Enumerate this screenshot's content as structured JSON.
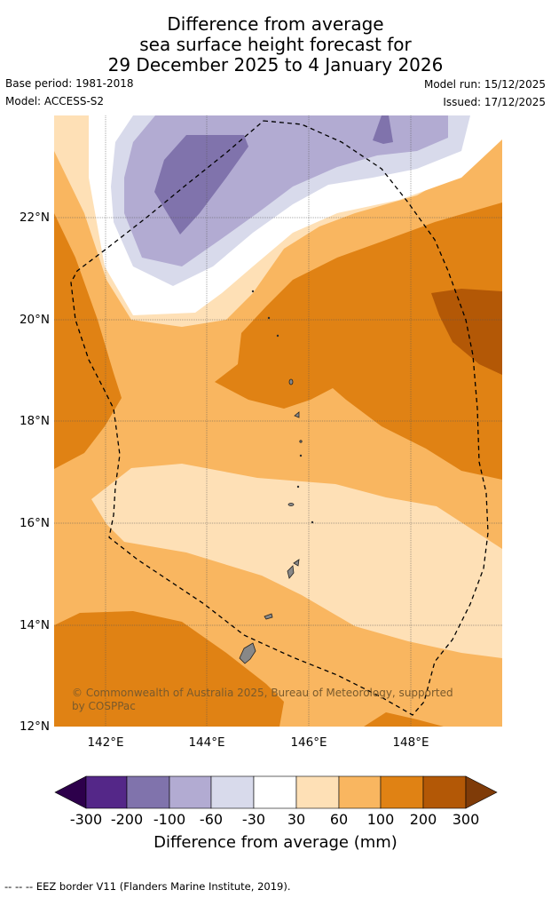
{
  "title": {
    "line1": "Difference from average",
    "line2": "sea surface height forecast for",
    "line3": "29 December 2025 to 4 January 2026"
  },
  "meta": {
    "base_period": "Base period: 1981-2018",
    "model": "Model: ACCESS-S2",
    "model_run": "Model run: 15/12/2025",
    "issued": "Issued: 17/12/2025"
  },
  "map": {
    "lon_labels": [
      "142°E",
      "144°E",
      "146°E",
      "148°E"
    ],
    "lat_labels": [
      "22°N",
      "20°N",
      "18°N",
      "16°N",
      "14°N",
      "12°N"
    ],
    "copyright": "© Commonwealth of Australia 2025, Bureau of Meteorology, supported by COSPPac",
    "colors": {
      "c200_300": "#b35806",
      "c100_200": "#e08214",
      "c60_100": "#f9b660",
      "c30_60": "#fee0b6",
      "neutral": "#ffffff",
      "cm30": "#d8daeb",
      "cm60": "#b2abd2",
      "cm100": "#8073ac",
      "land": "#888888",
      "eez": "#000000"
    }
  },
  "colorbar": {
    "ticks": [
      "-300",
      "-200",
      "-100",
      "-60",
      "-30",
      "30",
      "60",
      "100",
      "200",
      "300"
    ],
    "colors": [
      "#2d004b",
      "#542788",
      "#8073ac",
      "#b2abd2",
      "#d8daeb",
      "#ffffff",
      "#fee0b6",
      "#f9b660",
      "#e08214",
      "#b35806",
      "#7f3b08"
    ],
    "label": "Difference from average (mm)"
  },
  "footer": "--  --  -- EEZ border V11 (Flanders Marine Institute, 2019)."
}
